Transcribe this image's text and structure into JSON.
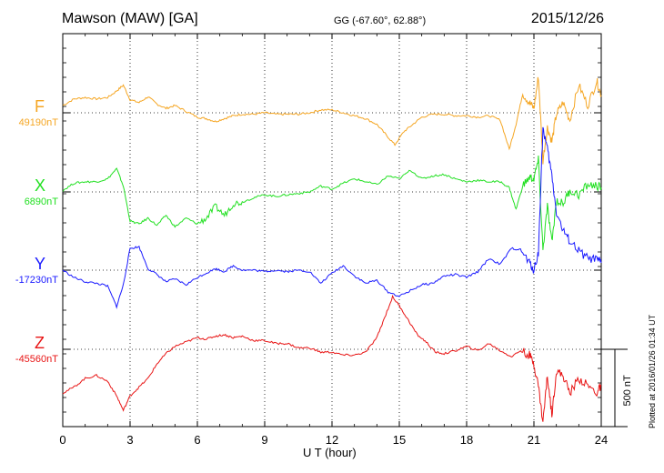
{
  "header": {
    "title": "Mawson (MAW)  [GA]",
    "coords": "GG (-67.60°,  62.88°)",
    "date": "2015/12/26"
  },
  "footer": {
    "plotted": "Plotted at 2016/01/26 01:34 UT"
  },
  "chart_data": {
    "type": "line",
    "title": "Mawson (MAW)  [GA]",
    "xlabel": "U T (hour)",
    "xlim": [
      0,
      24
    ],
    "xticks": [
      0,
      3,
      6,
      9,
      12,
      15,
      18,
      21,
      24
    ],
    "scale_bar": {
      "label": "500 nT",
      "value": 500
    },
    "grid": true,
    "series": [
      {
        "name": "F",
        "base_label": "49190nT",
        "baseline": 49190,
        "color": "#f5a623",
        "x": [
          0,
          0.5,
          1,
          1.5,
          2,
          2.4,
          2.7,
          3,
          3.4,
          3.8,
          4.2,
          4.6,
          5,
          5.5,
          6,
          6.4,
          6.8,
          7.2,
          7.6,
          8,
          8.5,
          9,
          9.5,
          10,
          10.5,
          11,
          11.5,
          12,
          12.5,
          13,
          13.5,
          14,
          14.4,
          14.8,
          15.2,
          15.6,
          16,
          16.5,
          17,
          17.5,
          18,
          18.5,
          19,
          19.5,
          19.9,
          20.2,
          20.5,
          20.8,
          21,
          21.2,
          21.4,
          21.6,
          21.8,
          22,
          22.3,
          22.6,
          23,
          23.4,
          23.8,
          24
        ],
        "y": [
          50,
          95,
          105,
          95,
          105,
          150,
          190,
          90,
          70,
          110,
          60,
          30,
          50,
          10,
          -30,
          -40,
          -60,
          -40,
          -20,
          -10,
          -10,
          0,
          -10,
          -10,
          -10,
          0,
          20,
          20,
          0,
          -20,
          -40,
          -80,
          -150,
          -220,
          -130,
          -80,
          -30,
          -10,
          -10,
          -20,
          -20,
          -30,
          -20,
          -50,
          -250,
          -80,
          130,
          70,
          30,
          250,
          -330,
          -100,
          -200,
          -10,
          70,
          -50,
          190,
          50,
          220,
          120
        ]
      },
      {
        "name": "X",
        "base_label": "6890nT",
        "baseline": 6890,
        "color": "#22e022",
        "x": [
          0,
          0.5,
          1,
          1.5,
          2,
          2.4,
          2.7,
          3,
          3.4,
          3.8,
          4.2,
          4.6,
          5,
          5.5,
          6,
          6.4,
          6.8,
          7.2,
          7.6,
          8,
          8.5,
          9,
          9.5,
          10,
          10.5,
          11,
          11.5,
          12,
          12.5,
          13,
          13.5,
          14,
          14.5,
          15,
          15.5,
          16,
          16.5,
          17,
          17.5,
          18,
          18.5,
          19,
          19.5,
          19.9,
          20.2,
          20.5,
          20.8,
          21,
          21.2,
          21.4,
          21.6,
          21.8,
          22,
          22.3,
          22.6,
          23,
          23.4,
          23.8,
          24
        ],
        "y": [
          10,
          60,
          70,
          70,
          90,
          160,
          40,
          -200,
          -220,
          -180,
          -230,
          -160,
          -240,
          -180,
          -220,
          -180,
          -100,
          -160,
          -80,
          -70,
          -40,
          -20,
          -30,
          -20,
          -10,
          0,
          40,
          20,
          60,
          90,
          70,
          50,
          110,
          90,
          150,
          90,
          110,
          120,
          90,
          70,
          80,
          70,
          70,
          30,
          -120,
          40,
          100,
          90,
          220,
          -400,
          -100,
          -350,
          -60,
          -80,
          10,
          -20,
          50,
          40,
          30
        ]
      },
      {
        "name": "Y",
        "base_label": "-17230nT",
        "baseline": -17230,
        "color": "#1a1aff",
        "x": [
          0,
          0.5,
          1,
          1.5,
          2,
          2.4,
          2.7,
          3,
          3.4,
          3.8,
          4.2,
          4.6,
          5,
          5.5,
          6,
          6.4,
          6.8,
          7.2,
          7.6,
          8,
          8.5,
          9,
          9.5,
          10,
          10.5,
          11,
          11.5,
          12,
          12.5,
          13,
          13.5,
          14,
          14.5,
          15,
          15.5,
          16,
          16.5,
          17,
          17.5,
          18,
          18.5,
          19,
          19.5,
          20,
          20.4,
          20.8,
          21,
          21.2,
          21.4,
          21.6,
          21.8,
          22,
          22.3,
          22.6,
          23,
          23.4,
          23.8,
          24
        ],
        "y": [
          0,
          -50,
          -80,
          -90,
          -110,
          -250,
          -100,
          150,
          160,
          10,
          -30,
          -80,
          -60,
          -100,
          -50,
          -20,
          10,
          -10,
          30,
          0,
          0,
          -10,
          0,
          -10,
          0,
          -10,
          -90,
          -20,
          30,
          -40,
          -90,
          -70,
          -150,
          -180,
          -140,
          -100,
          -90,
          -40,
          -30,
          -50,
          -10,
          80,
          40,
          150,
          140,
          50,
          0,
          120,
          980,
          830,
          650,
          400,
          270,
          200,
          130,
          80,
          70,
          50
        ]
      },
      {
        "name": "Z",
        "base_label": "-45560nT",
        "baseline": -45560,
        "color": "#e81414",
        "x": [
          0,
          0.5,
          1,
          1.5,
          2,
          2.4,
          2.7,
          3,
          3.4,
          3.8,
          4.2,
          4.6,
          5,
          5.5,
          6,
          6.4,
          6.8,
          7.2,
          7.6,
          8,
          8.5,
          9,
          9.5,
          10,
          10.5,
          11,
          11.5,
          12,
          12.5,
          13,
          13.5,
          14,
          14.3,
          14.7,
          15,
          15.4,
          15.8,
          16.2,
          16.6,
          17,
          17.5,
          18,
          18.5,
          19,
          19.5,
          20,
          20.4,
          20.8,
          21,
          21.2,
          21.4,
          21.6,
          21.8,
          22,
          22.3,
          22.6,
          23,
          23.4,
          23.8,
          24
        ],
        "y": [
          -300,
          -260,
          -200,
          -180,
          -220,
          -320,
          -420,
          -320,
          -260,
          -200,
          -100,
          -30,
          20,
          50,
          80,
          70,
          90,
          100,
          80,
          90,
          60,
          60,
          40,
          40,
          10,
          10,
          -20,
          -20,
          -40,
          -40,
          -20,
          80,
          200,
          360,
          300,
          200,
          100,
          50,
          -20,
          -30,
          -10,
          20,
          -10,
          40,
          -10,
          -50,
          -10,
          -40,
          -100,
          -250,
          -500,
          -180,
          -450,
          -150,
          -180,
          -300,
          -200,
          -250,
          -300,
          -250
        ]
      }
    ]
  }
}
